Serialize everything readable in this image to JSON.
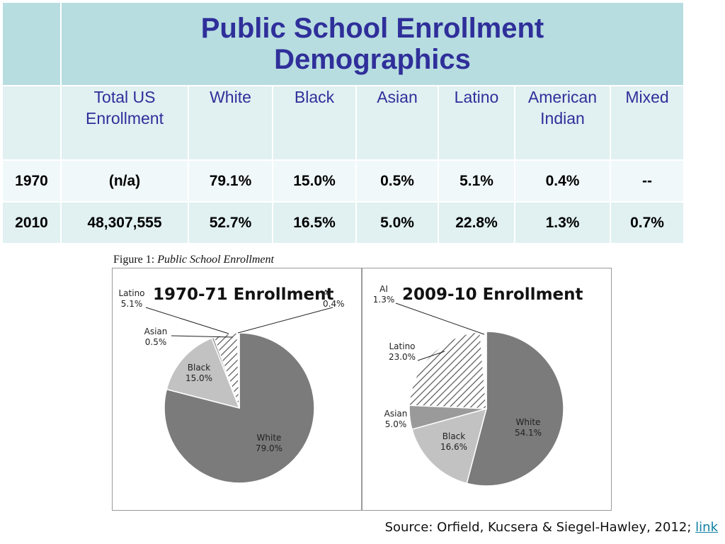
{
  "table": {
    "title_line1": "Public School Enrollment",
    "title_line2": "Demographics",
    "headers": [
      {
        "line1": "Total US",
        "line2": "Enrollment"
      },
      {
        "line1": "White",
        "line2": ""
      },
      {
        "line1": "Black",
        "line2": ""
      },
      {
        "line1": "Asian",
        "line2": ""
      },
      {
        "line1": "Latino",
        "line2": ""
      },
      {
        "line1": "American",
        "line2": "Indian"
      },
      {
        "line1": "Mixed",
        "line2": ""
      }
    ],
    "rows": [
      {
        "year": "1970",
        "cells": [
          "(n/a)",
          "79.1%",
          "15.0%",
          "0.5%",
          "5.1%",
          "0.4%",
          "--"
        ]
      },
      {
        "year": "2010",
        "cells": [
          "48,307,555",
          "52.7%",
          "16.5%",
          "5.0%",
          "22.8%",
          "1.3%",
          "0.7%"
        ]
      }
    ]
  },
  "figure": {
    "caption_prefix": "Figure 1: ",
    "caption_title": "Public School Enrollment"
  },
  "colors": {
    "table_title_bg": "#b7dde0",
    "table_header_bg": "#e1f0f1",
    "table_text_blue": "#2f2f9a",
    "pie_white": "#7b7b7b",
    "pie_black": "#c2c2c2",
    "pie_asian": "#9a9a9a",
    "link": "#0e7fa3"
  },
  "chart_data": [
    {
      "type": "pie",
      "title": "1970-71 Enrollment",
      "slices": [
        {
          "label": "White",
          "value": 79.0,
          "display": "79.0%",
          "pattern": "solid-dark"
        },
        {
          "label": "Black",
          "value": 15.0,
          "display": "15.0%",
          "pattern": "solid-light"
        },
        {
          "label": "Asian",
          "value": 0.5,
          "display": "0.5%",
          "pattern": "solid-mid"
        },
        {
          "label": "Latino",
          "value": 5.1,
          "display": "5.1%",
          "pattern": "hatched"
        },
        {
          "label": "AI",
          "value": 0.4,
          "display": "0.4%",
          "pattern": "white"
        }
      ]
    },
    {
      "type": "pie",
      "title": "2009-10 Enrollment",
      "slices": [
        {
          "label": "White",
          "value": 54.1,
          "display": "54.1%",
          "pattern": "solid-dark"
        },
        {
          "label": "Black",
          "value": 16.6,
          "display": "16.6%",
          "pattern": "solid-light"
        },
        {
          "label": "Asian",
          "value": 5.0,
          "display": "5.0%",
          "pattern": "solid-mid"
        },
        {
          "label": "Latino",
          "value": 23.0,
          "display": "23.0%",
          "pattern": "hatched"
        },
        {
          "label": "AI",
          "value": 1.3,
          "display": "1.3%",
          "pattern": "white"
        }
      ]
    }
  ],
  "source": {
    "text": "Source: Orfield, Kucsera & Siegel-Hawley, 2012; ",
    "link_text": "link"
  }
}
